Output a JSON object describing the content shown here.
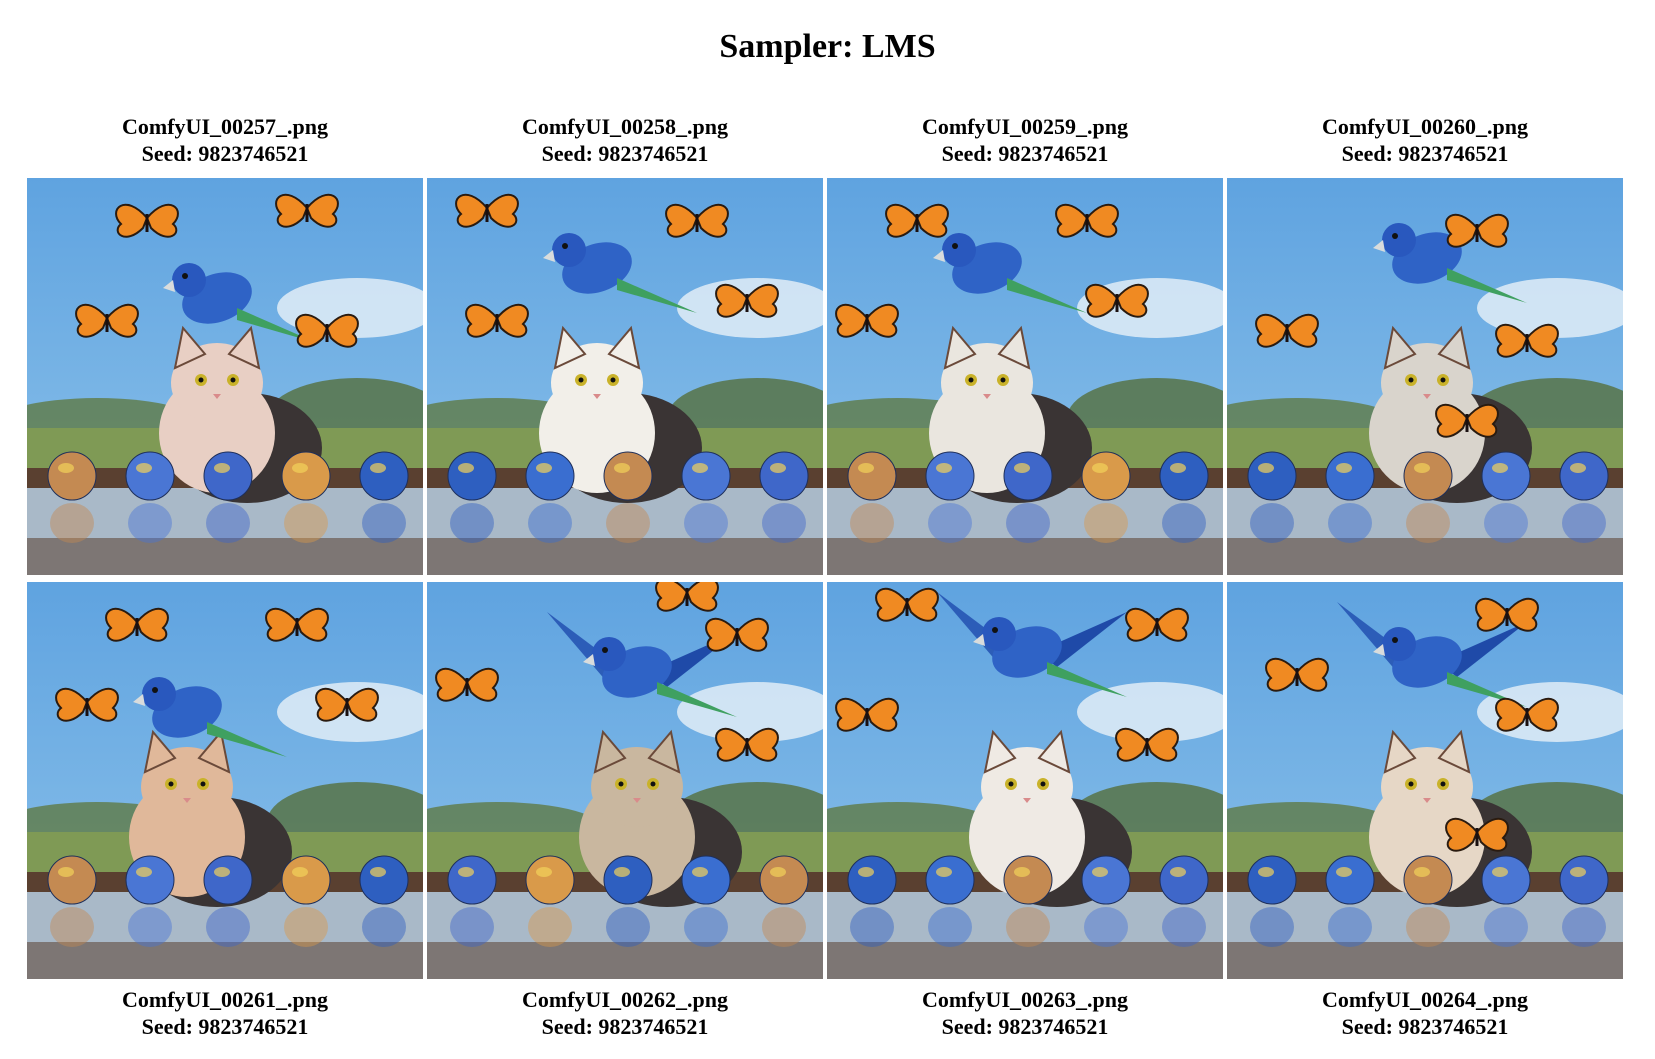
{
  "title": "Sampler: LMS",
  "images": [
    {
      "filename": "ComfyUI_00257_.png",
      "seed_label": "Seed: 9823746521"
    },
    {
      "filename": "ComfyUI_00258_.png",
      "seed_label": "Seed: 9823746521"
    },
    {
      "filename": "ComfyUI_00259_.png",
      "seed_label": "Seed: 9823746521"
    },
    {
      "filename": "ComfyUI_00260_.png",
      "seed_label": "Seed: 9823746521"
    },
    {
      "filename": "ComfyUI_00261_.png",
      "seed_label": "Seed: 9823746521"
    },
    {
      "filename": "ComfyUI_00262_.png",
      "seed_label": "Seed: 9823746521"
    },
    {
      "filename": "ComfyUI_00263_.png",
      "seed_label": "Seed: 9823746521"
    },
    {
      "filename": "ComfyUI_00264_.png",
      "seed_label": "Seed: 9823746521"
    }
  ],
  "colors": {
    "sky": "#8ec3ea",
    "sky_top": "#5fa3e0",
    "grass": "#7f9a55",
    "mud": "#5a4030",
    "water": "#a9b9c8"
  }
}
